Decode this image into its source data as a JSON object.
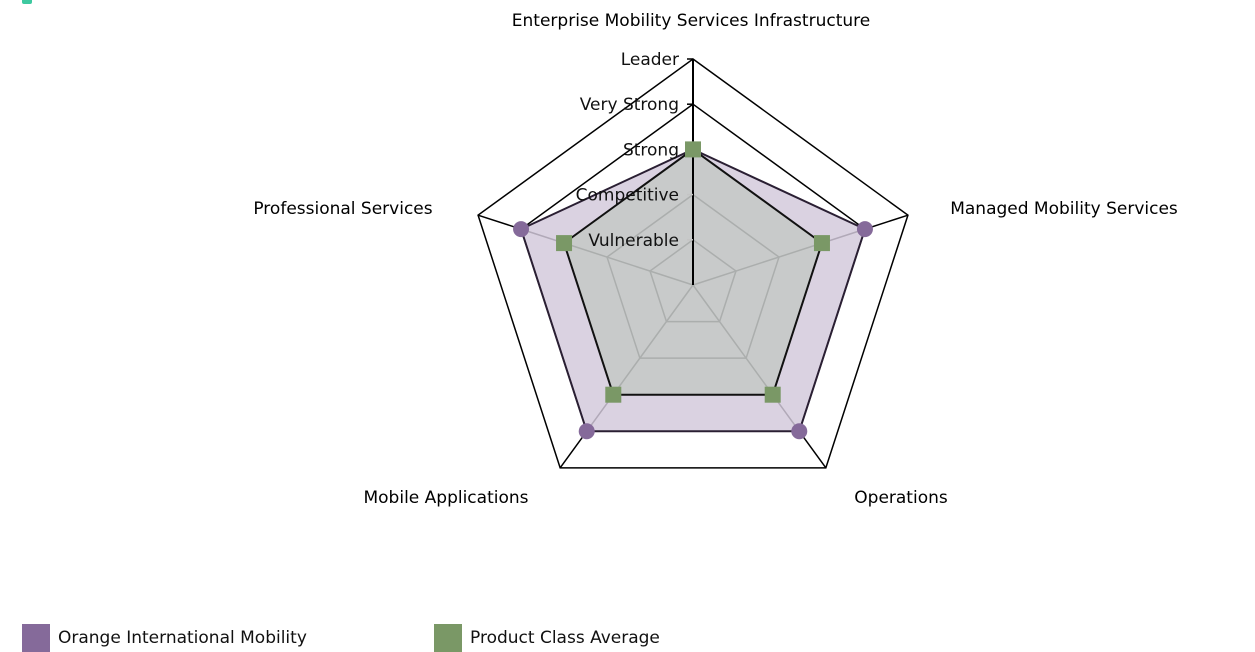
{
  "chart_data": {
    "type": "radar",
    "axes": [
      "Enterprise Mobility Services Infrastructure",
      "Managed Mobility Services",
      "Operations",
      "Mobile Applications",
      "Professional Services"
    ],
    "levels": [
      "Vulnerable",
      "Competitive",
      "Strong",
      "Very Strong",
      "Leader"
    ],
    "range": [
      0,
      5
    ],
    "series": [
      {
        "name": "Orange International Mobility",
        "color": "#856a9a",
        "marker": "circle",
        "values": [
          3,
          4,
          4,
          4,
          4
        ]
      },
      {
        "name": "Product Class Average",
        "color": "#7a9866",
        "marker": "square",
        "values": [
          3,
          3,
          3,
          3,
          3
        ]
      }
    ],
    "legend_position": "bottom-left"
  }
}
